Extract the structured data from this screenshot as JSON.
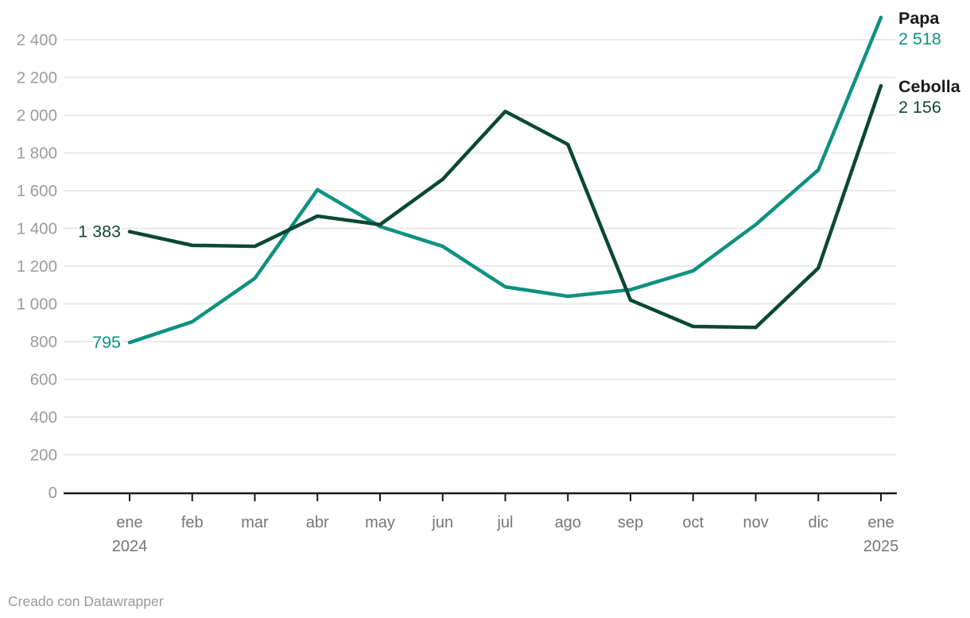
{
  "chart_data": {
    "type": "line",
    "x_categories": [
      "ene",
      "feb",
      "mar",
      "abr",
      "may",
      "jun",
      "jul",
      "ago",
      "sep",
      "oct",
      "nov",
      "dic",
      "ene"
    ],
    "x_year_labels": [
      {
        "index": 0,
        "label": "2024"
      },
      {
        "index": 12,
        "label": "2025"
      }
    ],
    "ylim": [
      0,
      2400
    ],
    "grid": "horizontal",
    "legend_position": "end-of-line-labels",
    "y_ticks": [
      {
        "value": 0,
        "label": "0"
      },
      {
        "value": 200,
        "label": "200"
      },
      {
        "value": 400,
        "label": "400"
      },
      {
        "value": 600,
        "label": "600"
      },
      {
        "value": 800,
        "label": "800"
      },
      {
        "value": 1000,
        "label": "1 000"
      },
      {
        "value": 1200,
        "label": "1 200"
      },
      {
        "value": 1400,
        "label": "1 400"
      },
      {
        "value": 1600,
        "label": "1 600"
      },
      {
        "value": 1800,
        "label": "1 800"
      },
      {
        "value": 2000,
        "label": "2 000"
      },
      {
        "value": 2200,
        "label": "2 200"
      },
      {
        "value": 2400,
        "label": "2 400"
      }
    ],
    "series": [
      {
        "name": "Papa",
        "color": "#0E9180",
        "values": [
          795,
          905,
          1135,
          1605,
          1410,
          1305,
          1090,
          1040,
          1075,
          1175,
          1420,
          1710,
          2518
        ],
        "first_value_label": "795",
        "last_value_label": "2 518"
      },
      {
        "name": "Cebolla",
        "color": "#0C4736",
        "values": [
          1383,
          1310,
          1305,
          1465,
          1420,
          1660,
          2020,
          1845,
          1020,
          880,
          875,
          1190,
          2156
        ],
        "first_value_label": "1 383",
        "last_value_label": "2 156"
      }
    ]
  },
  "footer": {
    "credit": "Creado con Datawrapper"
  },
  "colors": {
    "background": "#ffffff",
    "grid": "#e9e9e9",
    "axis_line": "#17181a",
    "y_tick_text": "#9b9b9b",
    "x_tick_text": "#767676",
    "series_name_text": "#1a1a1a",
    "credit_text": "#9a9a9a"
  }
}
